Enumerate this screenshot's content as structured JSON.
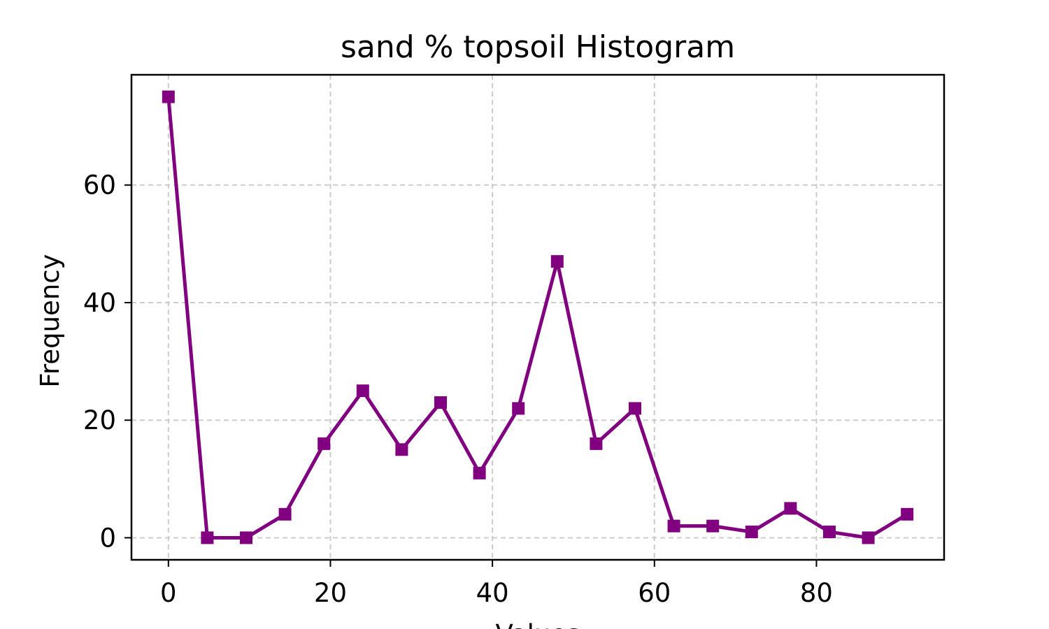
{
  "chart_data": {
    "type": "line",
    "title": "sand % topsoil Histogram",
    "xlabel": "Values",
    "ylabel": "Frequency",
    "x": [
      0,
      4.8,
      9.6,
      14.4,
      19.2,
      24.0,
      28.8,
      33.6,
      38.4,
      43.2,
      48.0,
      52.8,
      57.6,
      62.4,
      67.2,
      72.0,
      76.8,
      81.6,
      86.4,
      91.2
    ],
    "series": [
      {
        "values": [
          75,
          0,
          0,
          4,
          16,
          25,
          15,
          23,
          11,
          22,
          47,
          16,
          22,
          2,
          2,
          1,
          5,
          1,
          0,
          4
        ],
        "color": "#800080",
        "marker": "square"
      }
    ],
    "xlim": [
      -4.56,
      95.76
    ],
    "ylim": [
      -3.75,
      78.75
    ],
    "xticks": [
      0,
      20,
      40,
      60,
      80
    ],
    "yticks": [
      0,
      20,
      40,
      60
    ],
    "xtick_labels": [
      "0",
      "20",
      "40",
      "60",
      "80"
    ],
    "ytick_labels": [
      "0",
      "20",
      "40",
      "60"
    ],
    "grid": true,
    "grid_style": "dashed",
    "grid_color": "#cccccc"
  }
}
